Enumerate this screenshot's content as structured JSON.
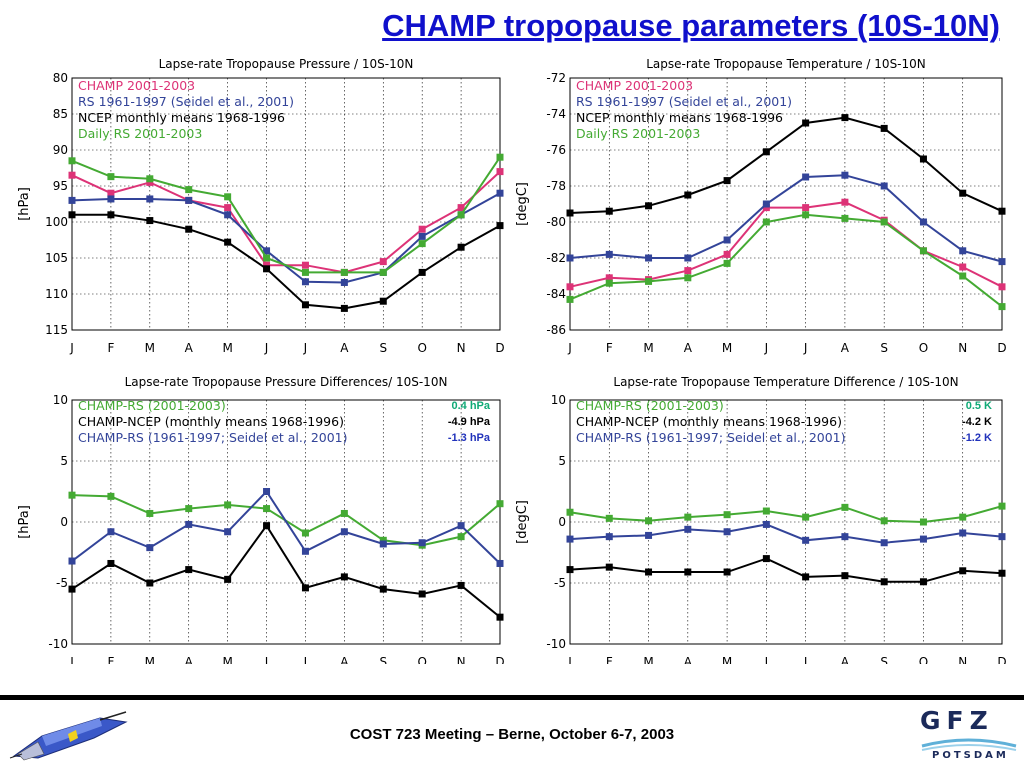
{
  "slide": {
    "title": "CHAMP tropopause parameters (10S-10N)",
    "footer": "COST 723 Meeting – Berne, October 6-7, 2003",
    "logo_text": "GFZ",
    "logo_subtext": "POTSDAM",
    "colors": {
      "title": "#1010cc",
      "champ": "#dd3377",
      "rs": "#334499",
      "ncep": "#000000",
      "daily_rs": "#44aa33",
      "diff_champ_rs_daily": "#44aa33",
      "diff_champ_ncep": "#000000",
      "diff_champ_rs_1961": "#334499",
      "summary_green": "#11aa77",
      "summary_blue": "#2233bb"
    }
  },
  "chart_data": [
    {
      "type": "line",
      "title": "Lapse-rate Tropopause Pressure / 10S-10N",
      "xlabel": "",
      "ylabel": "[hPa]",
      "categories": [
        "J",
        "F",
        "M",
        "A",
        "M",
        "J",
        "J",
        "A",
        "S",
        "O",
        "N",
        "D"
      ],
      "ylim": [
        80,
        115
      ],
      "y_inverted": true,
      "yticks": [
        80,
        85,
        90,
        95,
        100,
        105,
        110,
        115
      ],
      "grid": true,
      "legend_position": "top-left",
      "series": [
        {
          "name": "CHAMP 2001-2003",
          "color": "#dd3377",
          "values": [
            93.5,
            96.0,
            94.5,
            97.0,
            98.0,
            106.0,
            106.0,
            107.0,
            105.5,
            101.0,
            98.0,
            93.0
          ]
        },
        {
          "name": "RS 1961-1997 (Seidel et al., 2001)",
          "color": "#334499",
          "values": [
            97.0,
            96.8,
            96.8,
            97.0,
            99.0,
            104.0,
            108.3,
            108.4,
            107.0,
            102.0,
            99.0,
            96.0
          ]
        },
        {
          "name": "NCEP monthly means 1968-1996",
          "color": "#000000",
          "values": [
            99.0,
            99.0,
            99.8,
            101.0,
            102.8,
            106.5,
            111.5,
            112.0,
            111.0,
            107.0,
            103.5,
            100.5
          ]
        },
        {
          "name": "Daily RS 2001-2003",
          "color": "#44aa33",
          "values": [
            91.5,
            93.7,
            94.0,
            95.5,
            96.5,
            105.0,
            107.0,
            107.0,
            107.0,
            103.0,
            99.0,
            91.0
          ]
        }
      ]
    },
    {
      "type": "line",
      "title": "Lapse-rate Tropopause Temperature / 10S-10N",
      "xlabel": "",
      "ylabel": "[degC]",
      "categories": [
        "J",
        "F",
        "M",
        "A",
        "M",
        "J",
        "J",
        "A",
        "S",
        "O",
        "N",
        "D"
      ],
      "ylim": [
        -86,
        -72
      ],
      "yticks": [
        -72,
        -74,
        -76,
        -78,
        -80,
        -82,
        -84,
        -86
      ],
      "grid": true,
      "legend_position": "top-left",
      "series": [
        {
          "name": "CHAMP 2001-2003",
          "color": "#dd3377",
          "values": [
            -83.6,
            -83.1,
            -83.2,
            -82.7,
            -81.8,
            -79.2,
            -79.2,
            -78.9,
            -79.9,
            -81.6,
            -82.5,
            -83.6
          ]
        },
        {
          "name": "RS 1961-1997 (Seidel et al., 2001)",
          "color": "#334499",
          "values": [
            -82.0,
            -81.8,
            -82.0,
            -82.0,
            -81.0,
            -79.0,
            -77.5,
            -77.4,
            -78.0,
            -80.0,
            -81.6,
            -82.2
          ]
        },
        {
          "name": "NCEP monthly means 1968-1996",
          "color": "#000000",
          "values": [
            -79.5,
            -79.4,
            -79.1,
            -78.5,
            -77.7,
            -76.1,
            -74.5,
            -74.2,
            -74.8,
            -76.5,
            -78.4,
            -79.4
          ]
        },
        {
          "name": "Daily RS 2001-2003",
          "color": "#44aa33",
          "values": [
            -84.3,
            -83.4,
            -83.3,
            -83.1,
            -82.3,
            -80.0,
            -79.6,
            -79.8,
            -80.0,
            -81.6,
            -83.0,
            -84.7
          ]
        }
      ]
    },
    {
      "type": "line",
      "title": "Lapse-rate Tropopause Pressure Differences/ 10S-10N",
      "xlabel": "",
      "ylabel": "[hPa]",
      "categories": [
        "J",
        "F",
        "M",
        "A",
        "M",
        "J",
        "J",
        "A",
        "S",
        "O",
        "N",
        "D"
      ],
      "ylim": [
        -10,
        10
      ],
      "yticks": [
        10,
        5,
        0,
        -5,
        -10
      ],
      "grid": true,
      "legend_position": "top-left",
      "series": [
        {
          "name": "CHAMP-RS (2001-2003)",
          "summary": "0.4 hPa",
          "color": "#44aa33",
          "values": [
            2.2,
            2.1,
            0.7,
            1.1,
            1.4,
            1.1,
            -0.9,
            0.7,
            -1.5,
            -1.9,
            -1.2,
            1.5
          ]
        },
        {
          "name": "CHAMP-NCEP (monthly means 1968-1996)",
          "summary": "-4.9 hPa",
          "color": "#000000",
          "values": [
            -5.5,
            -3.4,
            -5.0,
            -3.9,
            -4.7,
            -0.3,
            -5.4,
            -4.5,
            -5.5,
            -5.9,
            -5.2,
            -7.8
          ]
        },
        {
          "name": "CHAMP-RS (1961-1997; Seidel et al., 2001)",
          "summary": "-1.3 hPa",
          "color": "#334499",
          "values": [
            -3.2,
            -0.8,
            -2.1,
            -0.2,
            -0.8,
            2.5,
            -2.4,
            -0.8,
            -1.8,
            -1.7,
            -0.3,
            -3.4
          ]
        }
      ]
    },
    {
      "type": "line",
      "title": "Lapse-rate Tropopause Temperature Difference / 10S-10N",
      "xlabel": "",
      "ylabel": "[degC]",
      "categories": [
        "J",
        "F",
        "M",
        "A",
        "M",
        "J",
        "J",
        "A",
        "S",
        "O",
        "N",
        "D"
      ],
      "ylim": [
        -10,
        10
      ],
      "yticks": [
        10,
        5,
        0,
        -5,
        -10
      ],
      "grid": true,
      "legend_position": "top-left",
      "series": [
        {
          "name": "CHAMP-RS (2001-2003)",
          "summary": "0.5 K",
          "color": "#44aa33",
          "values": [
            0.8,
            0.3,
            0.1,
            0.4,
            0.6,
            0.9,
            0.4,
            1.2,
            0.1,
            0.0,
            0.4,
            1.3
          ]
        },
        {
          "name": "CHAMP-NCEP (monthly means 1968-1996)",
          "summary": "-4.2 K",
          "color": "#000000",
          "values": [
            -3.9,
            -3.7,
            -4.1,
            -4.1,
            -4.1,
            -3.0,
            -4.5,
            -4.4,
            -4.9,
            -4.9,
            -4.0,
            -4.2
          ]
        },
        {
          "name": "CHAMP-RS (1961-1997; Seidel et al., 2001)",
          "summary": "-1.2 K",
          "color": "#334499",
          "values": [
            -1.4,
            -1.2,
            -1.1,
            -0.6,
            -0.8,
            -0.2,
            -1.5,
            -1.2,
            -1.7,
            -1.4,
            -0.9,
            -1.2
          ]
        }
      ]
    }
  ]
}
